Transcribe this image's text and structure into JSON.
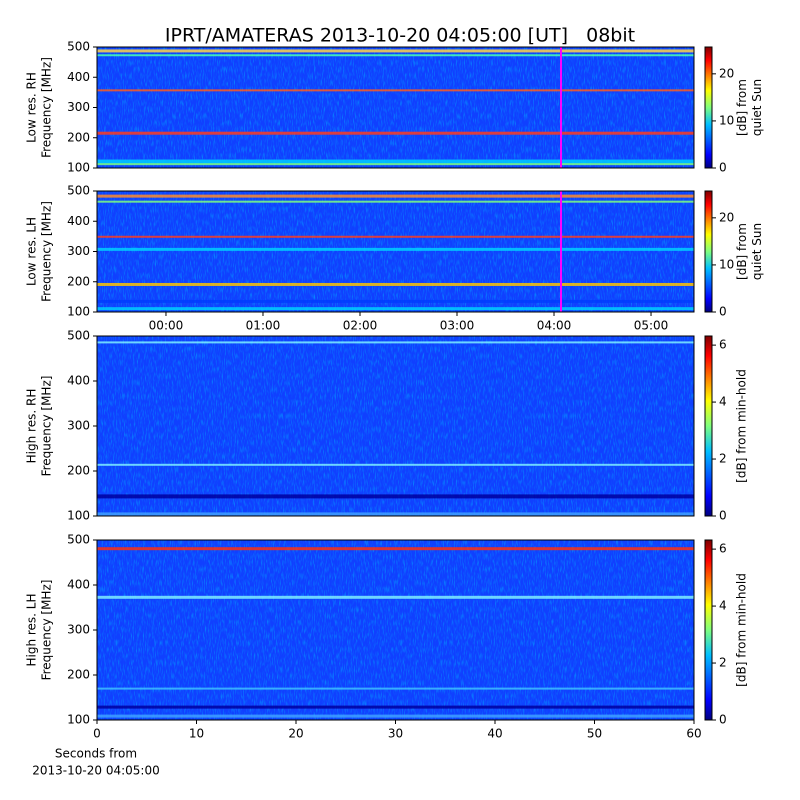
{
  "chart_data": [
    {
      "type": "spectrogram",
      "title": "IPRT/AMATERAS 2013-10-20 04:05:00 [UT]   08bit",
      "ylabel": [
        "Low res. RH",
        "Frequency [MHz]"
      ],
      "ylim": [
        100,
        500
      ],
      "yticks": [
        100,
        200,
        300,
        400,
        500
      ],
      "xlim": [
        -0.711,
        5.443
      ],
      "colorbar_label": [
        "[dB] from",
        "quiet Sun"
      ],
      "clim": [
        0,
        25.7
      ],
      "cticks": [
        0,
        10,
        20
      ]
    },
    {
      "type": "spectrogram",
      "ylabel": [
        "Low res. LH",
        "Frequency [MHz]"
      ],
      "ylim": [
        100,
        500
      ],
      "yticks": [
        100,
        200,
        300,
        400,
        500
      ],
      "xlim": [
        -0.711,
        5.443
      ],
      "xticks": [
        {
          "value": 0,
          "label": "00:00"
        },
        {
          "value": 1,
          "label": "01:00"
        },
        {
          "value": 2,
          "label": "02:00"
        },
        {
          "value": 3,
          "label": "03:00"
        },
        {
          "value": 4,
          "label": "04:00"
        },
        {
          "value": 5,
          "label": "05:00"
        }
      ],
      "colorbar_label": [
        "[dB] from",
        "quiet Sun"
      ],
      "clim": [
        0,
        25.7
      ],
      "cticks": [
        0,
        10,
        20
      ]
    },
    {
      "type": "spectrogram",
      "ylabel": [
        "High res. RH",
        "Frequency [MHz]"
      ],
      "ylim": [
        100,
        500
      ],
      "yticks": [
        100,
        200,
        300,
        400,
        500
      ],
      "xlim": [
        0,
        60
      ],
      "colorbar_label": [
        "[dB] from min-hold"
      ],
      "clim": [
        0,
        6.32
      ],
      "cticks": [
        0,
        2,
        4,
        6
      ]
    },
    {
      "type": "spectrogram",
      "ylabel": [
        "High res. LH",
        "Frequency [MHz]"
      ],
      "ylim": [
        100,
        500
      ],
      "yticks": [
        100,
        200,
        300,
        400,
        500
      ],
      "xlim": [
        0,
        60
      ],
      "xticks": [
        0,
        10,
        20,
        30,
        40,
        50,
        60
      ],
      "xlabel": [
        "Seconds from",
        "2013-10-20 04:05:00"
      ],
      "colorbar_label": [
        "[dB] from min-hold"
      ],
      "clim": [
        0,
        6.32
      ],
      "cticks": [
        0,
        2,
        4,
        6
      ]
    }
  ]
}
